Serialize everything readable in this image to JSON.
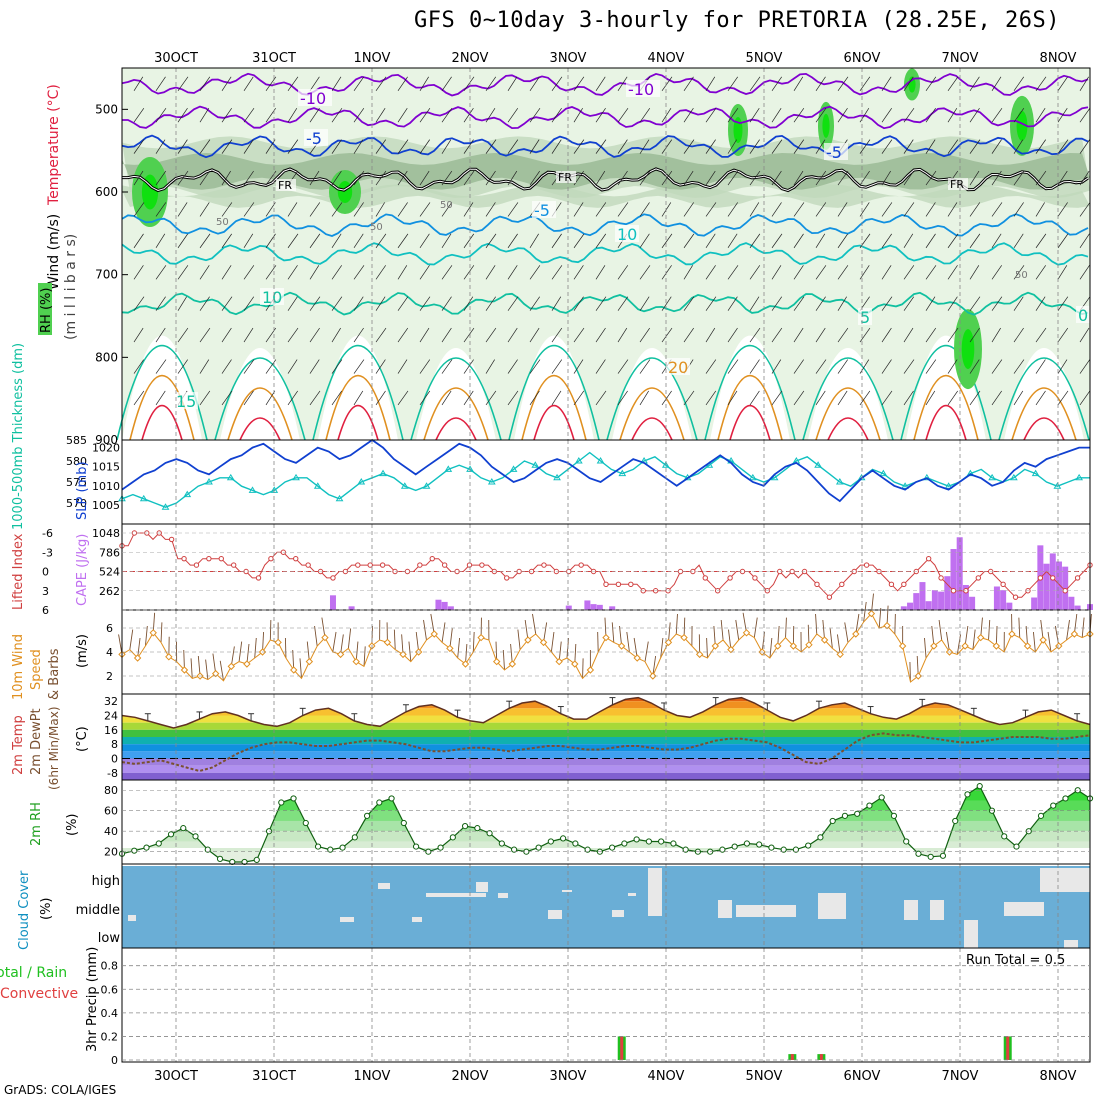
{
  "title": "GFS 0~10day 3-hourly for PRETORIA (28.25E, 26S)",
  "credit": "GrADS: COLA/IGES",
  "colors": {
    "purple": "#8000d0",
    "blue": "#1040d0",
    "lightblue": "#1090e0",
    "cyan": "#10c0c0",
    "teal": "#10c0a0",
    "orange": "#e09020",
    "red": "#e02040",
    "rh_light": "#e8f4e4",
    "rh_mid": "#c0d8bc",
    "rh_dark": "#98b894",
    "rh_green": "#50d050",
    "rh_bright": "#10e010",
    "cloud": "#6aaed6",
    "cape": "#c070f0",
    "li": "#d04040",
    "wind10": "#e09020",
    "precip_total": "#20c020",
    "precip_conv": "#e04040"
  },
  "chart_data": [
    {
      "type": "heatmap",
      "name": "upper-air cross-section",
      "ylabel_parts": [
        "Wind (m/s)",
        "Temperature (°C)",
        "RH (%)",
        "(m i l l i b a r s)"
      ],
      "x_dates": [
        "30OCT",
        "31OCT",
        "1NOV",
        "2NOV",
        "3NOV",
        "4NOV",
        "5NOV",
        "6NOV",
        "7NOV",
        "8NOV"
      ],
      "yticks": [
        500,
        600,
        700,
        800,
        900
      ],
      "ylim": [
        450,
        900
      ],
      "temperature_labels": [
        "-10",
        "-10",
        "-5",
        "-5",
        "FR",
        "FR",
        "FR",
        "-5",
        "10",
        "10",
        "20",
        "5",
        "15",
        "0"
      ],
      "rh_labels": [
        "50",
        "50",
        "50",
        "50"
      ]
    },
    {
      "type": "line",
      "name": "thickness and SLP",
      "ylabel_left": "1000-500mb Thickness (dm)",
      "ylabel_right": "SLP (mb)",
      "yticks_left": [
        570,
        575,
        580,
        585
      ],
      "yticks_right": [
        1005,
        1010,
        1015,
        1020
      ],
      "series": [
        {
          "name": "SLP",
          "values": [
            1009,
            1011,
            1013,
            1014,
            1016,
            1017,
            1016,
            1014,
            1013,
            1015,
            1017,
            1018,
            1020,
            1021,
            1019,
            1017,
            1016,
            1018,
            1020,
            1019,
            1017,
            1018,
            1020,
            1022,
            1020,
            1017,
            1015,
            1013,
            1015,
            1017,
            1019,
            1021,
            1020,
            1018,
            1015,
            1013,
            1011,
            1012,
            1014,
            1016,
            1017,
            1016,
            1014,
            1012,
            1011,
            1013,
            1015,
            1017,
            1016,
            1014,
            1012,
            1010,
            1012,
            1014,
            1016,
            1018,
            1016,
            1013,
            1011,
            1010,
            1013,
            1015,
            1016,
            1014,
            1011,
            1008,
            1006,
            1009,
            1012,
            1014,
            1012,
            1010,
            1009,
            1011,
            1012,
            1010,
            1009,
            1011,
            1013,
            1012,
            1010,
            1011,
            1014,
            1016,
            1015,
            1017,
            1018,
            1019,
            1020,
            1020
          ]
        },
        {
          "name": "Thickness",
          "values": [
            571,
            572,
            571,
            570,
            569,
            570,
            572,
            574,
            575,
            576,
            576,
            574,
            573,
            572,
            573,
            575,
            576,
            576,
            574,
            572,
            571,
            573,
            575,
            576,
            577,
            576,
            574,
            573,
            574,
            576,
            578,
            579,
            578,
            576,
            575,
            576,
            578,
            580,
            579,
            577,
            576,
            578,
            580,
            582,
            580,
            578,
            577,
            578,
            580,
            581,
            579,
            577,
            576,
            577,
            579,
            581,
            580,
            578,
            576,
            575,
            576,
            578,
            580,
            581,
            579,
            577,
            575,
            574,
            576,
            578,
            577,
            575,
            574,
            575,
            576,
            575,
            574,
            575,
            577,
            578,
            576,
            575,
            576,
            578,
            577,
            575,
            574,
            575,
            576,
            576
          ]
        }
      ]
    },
    {
      "type": "bar",
      "name": "CAPE and lifted index",
      "ylabel_left": "Lifted Index",
      "ylabel_right": "CAPE (J/kg)",
      "yticks_left": [
        -6,
        -3,
        0,
        3,
        6
      ],
      "yticks_right": [
        1048,
        786,
        524,
        262
      ],
      "cape": [
        0,
        0,
        0,
        0,
        0,
        0,
        0,
        0,
        0,
        0,
        0,
        0,
        0,
        0,
        0,
        0,
        0,
        0,
        0,
        0,
        0,
        0,
        0,
        0,
        0,
        0,
        0,
        0,
        0,
        0,
        0,
        0,
        0,
        0,
        200,
        0,
        0,
        50,
        0,
        0,
        0,
        0,
        0,
        0,
        0,
        0,
        0,
        0,
        0,
        0,
        0,
        140,
        110,
        50,
        0,
        0,
        0,
        0,
        0,
        0,
        0,
        0,
        0,
        0,
        0,
        0,
        0,
        0,
        0,
        0,
        0,
        0,
        60,
        0,
        0,
        130,
        80,
        70,
        0,
        50,
        0,
        0,
        0,
        0,
        0,
        0,
        0,
        0,
        0,
        0,
        0,
        0,
        0,
        0,
        0,
        0,
        0,
        0,
        0,
        0,
        0,
        0,
        0,
        0,
        0,
        0,
        0,
        0,
        0,
        0,
        0,
        0,
        0,
        0,
        0,
        0,
        0,
        0,
        0,
        0,
        0,
        0,
        0,
        0,
        0,
        0,
        50,
        100,
        230,
        380,
        120,
        270,
        250,
        460,
        830,
        990,
        340,
        180,
        0,
        0,
        0,
        320,
        270,
        100,
        0,
        0,
        0,
        170,
        880,
        630,
        770,
        660,
        590,
        180,
        60,
        0,
        80
      ],
      "lifted_index": [
        4,
        4,
        6,
        6,
        6,
        5,
        6,
        5,
        5,
        2,
        2,
        1,
        1,
        2,
        2,
        2,
        2,
        1,
        1,
        0,
        0,
        -1,
        -1,
        1,
        2,
        3,
        3,
        2,
        2,
        1,
        1,
        0,
        0,
        -1,
        -1,
        0,
        0,
        1,
        1,
        1,
        1,
        1,
        1,
        1,
        0,
        0,
        0,
        0,
        1,
        1,
        2,
        2,
        1,
        0,
        0,
        0,
        1,
        1,
        1,
        1,
        0,
        0,
        -1,
        -1,
        0,
        0,
        0,
        1,
        1,
        1,
        0,
        0,
        0,
        1,
        1,
        1,
        0,
        0,
        -2,
        -2,
        -2,
        -2,
        -2,
        -2,
        -3,
        -3,
        -3,
        -3,
        -3,
        -2,
        0,
        0,
        0,
        1,
        -1,
        -2,
        -3,
        -2,
        -1,
        0,
        0,
        0,
        -1,
        -2,
        -3,
        -2,
        0,
        -1,
        0,
        -1,
        0,
        -1,
        -2,
        -3,
        -4,
        -3,
        -2,
        -1,
        0,
        1,
        1,
        1,
        0,
        -1,
        -2,
        -3,
        -2,
        -1,
        0,
        1,
        2,
        1,
        -1,
        -2,
        -3,
        -3,
        -3,
        -2,
        -1,
        0,
        0,
        -1,
        -2,
        -3,
        -4,
        -4,
        -3,
        -2,
        -1,
        0,
        -1,
        -2,
        -3,
        -2,
        -1,
        0,
        1
      ]
    },
    {
      "type": "line",
      "name": "10m wind speed",
      "ylabel": "10m Wind Speed & Barbs (m/s)",
      "yticks": [
        2,
        4,
        6
      ],
      "ylim": [
        0.5,
        7.5
      ],
      "values": [
        3.8,
        4.2,
        3.5,
        4.5,
        5.6,
        4.8,
        3.6,
        3.2,
        2.5,
        1.8,
        2.0,
        1.7,
        2.2,
        1.6,
        2.8,
        3.2,
        3.0,
        3.5,
        4.0,
        5.0,
        4.8,
        3.5,
        2.5,
        1.8,
        3.2,
        4.5,
        5.2,
        4.0,
        3.8,
        4.3,
        3.2,
        2.8,
        4.5,
        5.0,
        4.8,
        4.2,
        3.8,
        3.2,
        4.0,
        5.0,
        5.5,
        4.8,
        4.3,
        3.5,
        3.0,
        4.0,
        5.2,
        5.0,
        3.2,
        2.5,
        3.0,
        4.2,
        5.0,
        5.5,
        4.8,
        4.0,
        3.2,
        3.5,
        3.0,
        1.8,
        2.5,
        4.0,
        5.2,
        4.8,
        4.5,
        4.0,
        3.5,
        3.2,
        2.0,
        3.5,
        4.8,
        5.5,
        5.2,
        4.5,
        3.8,
        3.5,
        4.5,
        5.0,
        4.2,
        5.0,
        5.6,
        5.2,
        4.0,
        3.5,
        4.5,
        5.2,
        4.5,
        4.0,
        4.6,
        5.5,
        5.0,
        4.3,
        3.8,
        4.8,
        5.5,
        6.5,
        7.2,
        6.0,
        6.2,
        5.5,
        4.5,
        1.5,
        2.0,
        3.5,
        4.5,
        5.0,
        4.0,
        3.8,
        4.5,
        4.2,
        5.2,
        5.0,
        4.5,
        4.0,
        5.5,
        5.2,
        4.5,
        4.0,
        5.0,
        4.0,
        4.5,
        5.0,
        5.5,
        5.2,
        5.5
      ]
    },
    {
      "type": "area",
      "name": "2m temperature and dew point",
      "ylabel": "2m Temp 2m DewPt (6hr Min/Max) (°C)",
      "yticks": [
        32,
        24,
        16,
        8,
        0,
        -8
      ],
      "ylim": [
        -12,
        36
      ],
      "temperature": [
        24,
        23,
        21,
        19,
        17,
        19,
        22,
        25,
        26,
        24,
        21,
        19,
        18,
        20,
        24,
        27,
        28,
        25,
        21,
        19,
        18,
        22,
        26,
        29,
        30,
        27,
        23,
        21,
        20,
        24,
        28,
        31,
        32,
        29,
        25,
        22,
        22,
        26,
        30,
        33,
        34,
        31,
        27,
        24,
        23,
        26,
        30,
        33,
        34,
        31,
        27,
        23,
        21,
        24,
        28,
        30,
        31,
        28,
        25,
        23,
        22,
        25,
        29,
        31,
        30,
        27,
        24,
        21,
        19,
        20,
        23,
        26,
        27,
        24,
        21,
        19
      ],
      "dewpoint": [
        -2,
        -3,
        -2,
        -1,
        -3,
        -5,
        -7,
        -5,
        -1,
        3,
        6,
        8,
        9,
        9,
        8,
        7,
        7,
        8,
        9,
        10,
        10,
        9,
        8,
        6,
        4,
        4,
        5,
        6,
        6,
        5,
        4,
        5,
        6,
        7,
        7,
        6,
        5,
        5,
        6,
        7,
        7,
        6,
        5,
        5,
        6,
        8,
        10,
        11,
        11,
        10,
        9,
        6,
        2,
        -2,
        -3,
        0,
        5,
        10,
        13,
        14,
        13,
        13,
        12,
        11,
        10,
        9,
        9,
        10,
        11,
        12,
        12,
        12,
        11,
        11,
        12,
        13
      ]
    },
    {
      "type": "area",
      "name": "2m relative humidity",
      "ylabel": "2m RH (%)",
      "yticks": [
        20,
        40,
        60,
        80
      ],
      "ylim": [
        8,
        90
      ],
      "values": [
        18,
        21,
        24,
        28,
        37,
        43,
        35,
        22,
        13,
        10,
        10,
        12,
        40,
        68,
        72,
        48,
        25,
        22,
        24,
        34,
        55,
        68,
        72,
        48,
        25,
        20,
        24,
        34,
        45,
        43,
        38,
        28,
        22,
        20,
        24,
        30,
        33,
        28,
        22,
        20,
        24,
        28,
        32,
        30,
        30,
        28,
        22,
        20,
        20,
        22,
        25,
        28,
        27,
        24,
        22,
        22,
        26,
        34,
        50,
        55,
        57,
        65,
        73,
        55,
        30,
        18,
        15,
        16,
        50,
        76,
        84,
        60,
        35,
        25,
        40,
        55,
        65,
        72,
        80,
        72
      ]
    },
    {
      "type": "bar",
      "name": "cloud cover",
      "ylabel": "Cloud Cover (%)",
      "ylevels": [
        "high",
        "middle",
        "low"
      ]
    },
    {
      "type": "bar",
      "name": "3hr precipitation",
      "ylabel": "3hr Precip (mm)",
      "ylabel_left": "Total / Rain",
      "ylabel_left2": "Convective",
      "yticks": [
        0,
        0.2,
        0.4,
        0.6,
        0.8
      ],
      "ylim": [
        0,
        0.95
      ],
      "annotation": "Run Total = 0.5",
      "bars": [
        {
          "time": 41.3,
          "total": 0.2
        },
        {
          "time": 55.4,
          "total": 0.05
        },
        {
          "time": 57.8,
          "total": 0.05
        },
        {
          "time": 73.2,
          "total": 0.2
        }
      ]
    }
  ]
}
